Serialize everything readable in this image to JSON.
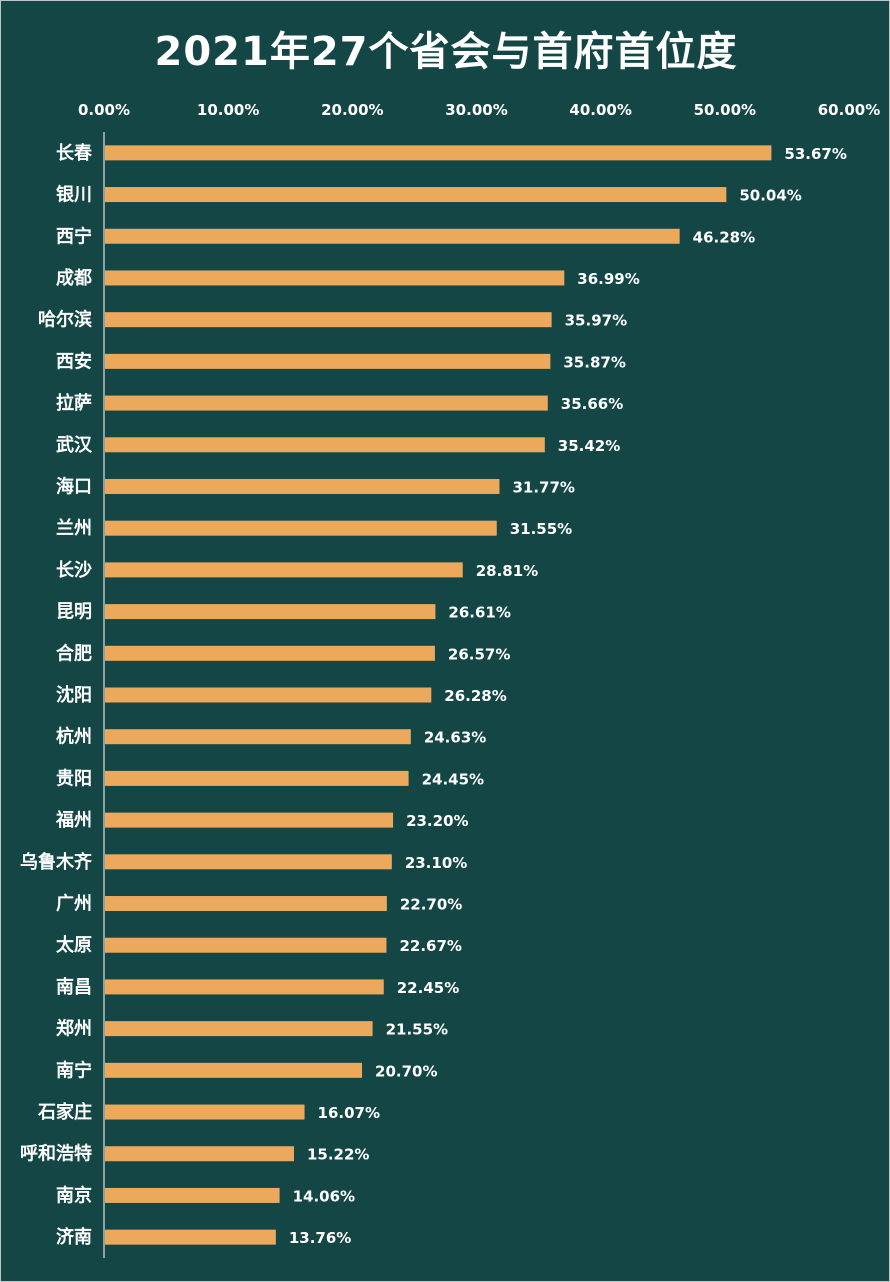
{
  "chart_data": {
    "type": "bar",
    "orientation": "horizontal",
    "title": "2021年27个省会与首府首位度",
    "xlim": [
      0,
      60
    ],
    "x_ticks": [
      "0.00%",
      "10.00%",
      "20.00%",
      "30.00%",
      "40.00%",
      "50.00%",
      "60.00%"
    ],
    "tick_values": [
      0,
      10,
      20,
      30,
      40,
      50,
      60
    ],
    "categories": [
      "长春",
      "银川",
      "西宁",
      "成都",
      "哈尔滨",
      "西安",
      "拉萨",
      "武汉",
      "海口",
      "兰州",
      "长沙",
      "昆明",
      "合肥",
      "沈阳",
      "杭州",
      "贵阳",
      "福州",
      "乌鲁木齐",
      "广州",
      "太原",
      "南昌",
      "郑州",
      "南宁",
      "石家庄",
      "呼和浩特",
      "南京",
      "济南"
    ],
    "values": [
      53.67,
      50.04,
      46.28,
      36.99,
      35.97,
      35.87,
      35.66,
      35.42,
      31.77,
      31.55,
      28.81,
      26.61,
      26.57,
      26.28,
      24.63,
      24.45,
      23.2,
      23.1,
      22.7,
      22.67,
      22.45,
      21.55,
      20.7,
      16.07,
      15.22,
      14.06,
      13.76
    ],
    "data_labels": [
      "53.67%",
      "50.04%",
      "46.28%",
      "36.99%",
      "35.97%",
      "35.87%",
      "35.66%",
      "35.42%",
      "31.77%",
      "31.55%",
      "28.81%",
      "26.61%",
      "26.57%",
      "26.28%",
      "24.63%",
      "24.45%",
      "23.20%",
      "23.10%",
      "22.70%",
      "22.67%",
      "22.45%",
      "21.55%",
      "20.70%",
      "16.07%",
      "15.22%",
      "14.06%",
      "13.76%"
    ],
    "bar_color": "#eca95c",
    "background_color": "#144646",
    "grid": false
  }
}
